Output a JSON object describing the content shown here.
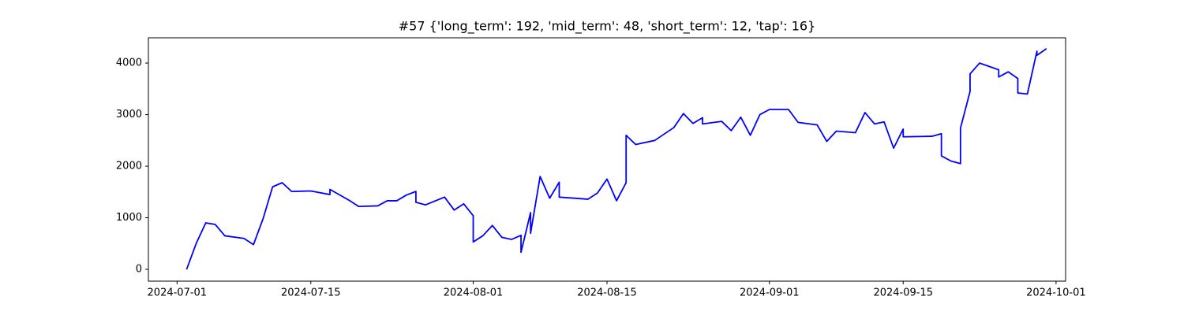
{
  "chart_data": {
    "type": "line",
    "title": "#57 {'long_term': 192, 'mid_term': 48, 'short_term': 12, 'tap': 16}",
    "x": [
      "2024-07-02",
      "2024-07-03",
      "2024-07-04",
      "2024-07-05",
      "2024-07-06",
      "2024-07-08",
      "2024-07-09",
      "2024-07-10",
      "2024-07-11",
      "2024-07-12",
      "2024-07-13",
      "2024-07-15",
      "2024-07-17",
      "2024-07-17",
      "2024-07-19",
      "2024-07-20",
      "2024-07-22",
      "2024-07-23",
      "2024-07-24",
      "2024-07-25",
      "2024-07-26",
      "2024-07-26",
      "2024-07-27",
      "2024-07-29",
      "2024-07-30",
      "2024-07-31",
      "2024-08-01",
      "2024-08-01",
      "2024-08-02",
      "2024-08-03",
      "2024-08-04",
      "2024-08-05",
      "2024-08-06",
      "2024-08-06",
      "2024-08-07",
      "2024-08-07",
      "2024-08-08",
      "2024-08-09",
      "2024-08-10",
      "2024-08-10",
      "2024-08-13",
      "2024-08-14",
      "2024-08-15",
      "2024-08-16",
      "2024-08-17",
      "2024-08-17",
      "2024-08-18",
      "2024-08-20",
      "2024-08-22",
      "2024-08-23",
      "2024-08-24",
      "2024-08-25",
      "2024-08-25",
      "2024-08-27",
      "2024-08-28",
      "2024-08-29",
      "2024-08-30",
      "2024-08-31",
      "2024-09-01",
      "2024-09-03",
      "2024-09-04",
      "2024-09-06",
      "2024-09-07",
      "2024-09-08",
      "2024-09-10",
      "2024-09-11",
      "2024-09-12",
      "2024-09-13",
      "2024-09-14",
      "2024-09-15",
      "2024-09-15",
      "2024-09-18",
      "2024-09-19",
      "2024-09-19",
      "2024-09-20",
      "2024-09-21",
      "2024-09-21",
      "2024-09-22",
      "2024-09-22",
      "2024-09-23",
      "2024-09-25",
      "2024-09-25",
      "2024-09-26",
      "2024-09-27",
      "2024-09-27",
      "2024-09-28",
      "2024-09-29",
      "2024-09-29",
      "2024-09-30"
    ],
    "values": [
      0,
      500,
      900,
      870,
      650,
      600,
      480,
      980,
      1600,
      1680,
      1510,
      1520,
      1450,
      1550,
      1340,
      1220,
      1230,
      1330,
      1330,
      1440,
      1510,
      1300,
      1250,
      1400,
      1150,
      1270,
      1040,
      530,
      650,
      850,
      620,
      580,
      660,
      330,
      1100,
      700,
      1800,
      1380,
      1690,
      1400,
      1360,
      1480,
      1750,
      1330,
      1680,
      2600,
      2420,
      2500,
      2750,
      3020,
      2830,
      2940,
      2820,
      2870,
      2690,
      2950,
      2600,
      3000,
      3100,
      3100,
      2850,
      2800,
      2480,
      2680,
      2650,
      3040,
      2820,
      2860,
      2350,
      2720,
      2570,
      2580,
      2630,
      2200,
      2100,
      2050,
      2740,
      3450,
      3790,
      4000,
      3870,
      3730,
      3830,
      3700,
      3420,
      3400,
      4230,
      4150,
      4280
    ],
    "color": "blue",
    "xlim": [
      "2024-06-28",
      "2024-10-02"
    ],
    "xticks": [
      "2024-07-01",
      "2024-07-15",
      "2024-08-01",
      "2024-08-15",
      "2024-09-01",
      "2024-09-15",
      "2024-10-01"
    ],
    "ylim": [
      -229,
      4490
    ],
    "yticks": [
      0,
      1000,
      2000,
      3000,
      4000
    ],
    "grid": false
  }
}
